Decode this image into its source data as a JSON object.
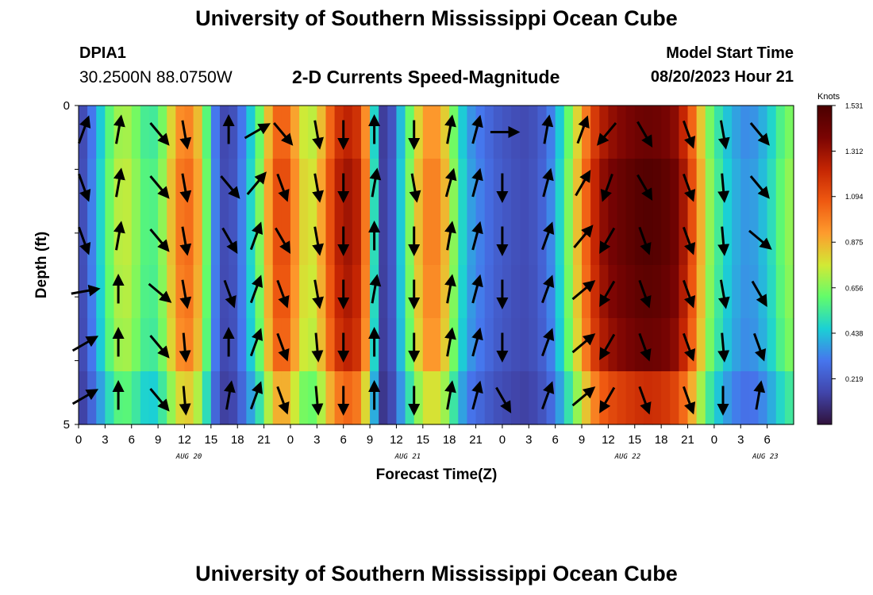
{
  "header": {
    "title": "University of Southern Mississippi Ocean Cube",
    "station_id": "DPIA1",
    "station_coords": "30.2500N  88.0750W",
    "chart_title": "2-D Currents Speed-Magnitude",
    "model_start_label": "Model Start Time",
    "model_start_value": "08/20/2023 Hour 21"
  },
  "footer": {
    "title": "University of Southern Mississippi Ocean Cube"
  },
  "chart_data": {
    "type": "heatmap",
    "title": "2-D Currents Speed-Magnitude",
    "xlabel": "Forecast Time(Z)",
    "ylabel": "Depth (ft)",
    "units": "Knots",
    "xlim_hours": [
      0,
      81
    ],
    "ylim": [
      0,
      5
    ],
    "y_ticks": [
      "0",
      "",
      "",
      "",
      "",
      "5"
    ],
    "x_ticks": [
      {
        "h": 0,
        "label": "0"
      },
      {
        "h": 3,
        "label": "3"
      },
      {
        "h": 6,
        "label": "6"
      },
      {
        "h": 9,
        "label": "9"
      },
      {
        "h": 12,
        "label": "12"
      },
      {
        "h": 15,
        "label": "15"
      },
      {
        "h": 18,
        "label": "18"
      },
      {
        "h": 21,
        "label": "21"
      },
      {
        "h": 24,
        "label": "0"
      },
      {
        "h": 27,
        "label": "3"
      },
      {
        "h": 30,
        "label": "6"
      },
      {
        "h": 33,
        "label": "9"
      },
      {
        "h": 36,
        "label": "12"
      },
      {
        "h": 39,
        "label": "15"
      },
      {
        "h": 42,
        "label": "18"
      },
      {
        "h": 45,
        "label": "21"
      },
      {
        "h": 48,
        "label": "0"
      },
      {
        "h": 51,
        "label": "3"
      },
      {
        "h": 54,
        "label": "6"
      },
      {
        "h": 57,
        "label": "9"
      },
      {
        "h": 60,
        "label": "12"
      },
      {
        "h": 63,
        "label": "15"
      },
      {
        "h": 66,
        "label": "18"
      },
      {
        "h": 69,
        "label": "21"
      },
      {
        "h": 72,
        "label": "0"
      },
      {
        "h": 75,
        "label": "3"
      },
      {
        "h": 78,
        "label": "6"
      }
    ],
    "date_labels": [
      {
        "h": 12.5,
        "label": "AUG 20"
      },
      {
        "h": 37.3,
        "label": "AUG 21"
      },
      {
        "h": 62.2,
        "label": "AUG 22"
      },
      {
        "h": 77.8,
        "label": "AUG 23"
      }
    ],
    "colorbar": {
      "label": "Knots",
      "min": 0.0,
      "max": 1.531,
      "ticks": [
        "1.531",
        "1.312",
        "1.094",
        "0.875",
        "0.656",
        "0.438",
        "0.219"
      ],
      "tick_values": [
        1.531,
        1.312,
        1.094,
        0.875,
        0.656,
        0.438,
        0.219
      ]
    },
    "speed_profile_hours": [
      0,
      1,
      2,
      3,
      4,
      5,
      6,
      7,
      8,
      9,
      10,
      11,
      12,
      13,
      14,
      15,
      16,
      17,
      18,
      19,
      20,
      21,
      22,
      23,
      24,
      25,
      26,
      27,
      28,
      29,
      30,
      31,
      32,
      33,
      34,
      35,
      36,
      37,
      38,
      39,
      40,
      41,
      42,
      43,
      44,
      45,
      46,
      47,
      48,
      49,
      50,
      51,
      52,
      53,
      54,
      55,
      56,
      57,
      58,
      59,
      60,
      61,
      62,
      63,
      64,
      65,
      66,
      67,
      68,
      69,
      70,
      71,
      72,
      73,
      74,
      75,
      76,
      77,
      78,
      79,
      80,
      81
    ],
    "speed_profile_knots": [
      0.12,
      0.25,
      0.4,
      0.55,
      0.7,
      0.76,
      0.72,
      0.62,
      0.55,
      0.6,
      0.75,
      0.95,
      1.05,
      1.0,
      0.8,
      0.45,
      0.2,
      0.15,
      0.25,
      0.4,
      0.55,
      0.75,
      1.05,
      1.15,
      1.05,
      0.85,
      0.75,
      0.8,
      1.0,
      1.2,
      1.3,
      1.3,
      1.2,
      0.8,
      0.2,
      0.08,
      0.35,
      0.55,
      0.75,
      0.95,
      1.0,
      0.95,
      0.78,
      0.55,
      0.4,
      0.35,
      0.3,
      0.25,
      0.22,
      0.2,
      0.18,
      0.18,
      0.22,
      0.28,
      0.4,
      0.55,
      0.75,
      0.95,
      1.15,
      1.3,
      1.38,
      1.42,
      1.45,
      1.48,
      1.5,
      1.5,
      1.48,
      1.45,
      1.38,
      1.2,
      1.0,
      0.75,
      0.6,
      0.5,
      0.42,
      0.38,
      0.35,
      0.4,
      0.45,
      0.55,
      0.65,
      0.7
    ],
    "depth_row_factor": [
      0.95,
      1.0,
      1.0,
      0.98,
      0.95,
      0.8
    ],
    "vector_hours": [
      0.5,
      4.5,
      9,
      12,
      17,
      20,
      23,
      27,
      30,
      33.5,
      38,
      42,
      45,
      48,
      53,
      57,
      60,
      64,
      69,
      73,
      77
    ],
    "vector_angle_deg": [
      [
        20,
        10,
        140,
        170,
        0,
        60,
        140,
        170,
        180,
        0,
        180,
        10,
        15,
        90,
        10,
        20,
        220,
        150,
        160,
        170,
        140
      ],
      [
        160,
        10,
        140,
        170,
        140,
        40,
        160,
        170,
        180,
        10,
        170,
        15,
        15,
        180,
        15,
        30,
        200,
        150,
        160,
        175,
        140
      ],
      [
        160,
        10,
        140,
        170,
        150,
        20,
        150,
        170,
        180,
        0,
        180,
        10,
        15,
        180,
        20,
        40,
        210,
        160,
        160,
        175,
        130
      ],
      [
        80,
        0,
        130,
        170,
        160,
        20,
        160,
        170,
        180,
        10,
        180,
        10,
        15,
        180,
        20,
        50,
        210,
        160,
        160,
        170,
        150
      ],
      [
        60,
        0,
        140,
        175,
        0,
        20,
        160,
        175,
        180,
        0,
        180,
        10,
        15,
        180,
        20,
        50,
        210,
        160,
        160,
        175,
        160
      ],
      [
        60,
        0,
        140,
        175,
        10,
        20,
        160,
        175,
        180,
        0,
        180,
        10,
        15,
        150,
        20,
        50,
        210,
        160,
        160,
        180,
        10
      ]
    ]
  }
}
